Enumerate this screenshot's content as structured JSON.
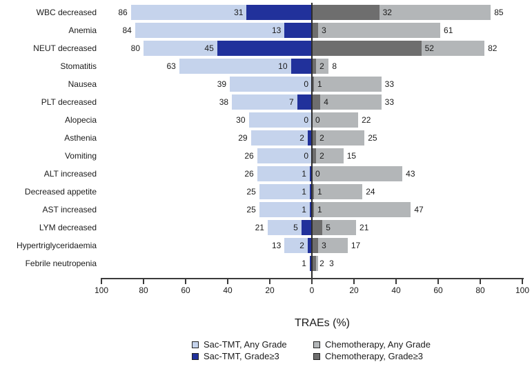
{
  "chart_data": {
    "type": "bar",
    "variant": "horizontal-diverging-tornado",
    "title": "",
    "xlabel": "TRAEs (%)",
    "axis": {
      "tick_labels": [
        "100",
        "80",
        "60",
        "40",
        "20",
        "0",
        "20",
        "40",
        "60",
        "80",
        "100"
      ],
      "tick_step_percent": 20,
      "left_max": 100,
      "right_max": 100,
      "grid": false
    },
    "categories": [
      "WBC decreased",
      "Anemia",
      "NEUT decreased",
      "Stomatitis",
      "Nausea",
      "PLT decreased",
      "Alopecia",
      "Asthenia",
      "Vomiting",
      "ALT increased",
      "Decreased appetite",
      "AST increased",
      "LYM decreased",
      "Hypertriglyceridaemia",
      "Febrile neutropenia"
    ],
    "series": [
      {
        "name": "Sac-TMT, Any Grade",
        "side": "left",
        "grade": "any",
        "color": "#c5d3ec",
        "values": [
          86,
          84,
          80,
          63,
          39,
          38,
          30,
          29,
          26,
          26,
          25,
          25,
          21,
          13,
          1
        ]
      },
      {
        "name": "Sac-TMT, Grade≥3",
        "side": "left",
        "grade": "ge3",
        "color": "#21319b",
        "values": [
          31,
          13,
          45,
          10,
          0,
          7,
          0,
          2,
          0,
          1,
          1,
          1,
          5,
          2,
          1
        ]
      },
      {
        "name": "Chemotherapy, Any Grade",
        "side": "right",
        "grade": "any",
        "color": "#b3b6b8",
        "values": [
          85,
          61,
          82,
          8,
          33,
          33,
          22,
          25,
          15,
          43,
          24,
          47,
          21,
          17,
          3
        ]
      },
      {
        "name": "Chemotherapy, Grade≥3",
        "side": "right",
        "grade": "ge3",
        "color": "#6e6e6e",
        "values": [
          32,
          3,
          52,
          2,
          1,
          4,
          0,
          2,
          2,
          0,
          1,
          1,
          5,
          3,
          2
        ]
      }
    ],
    "legend": {
      "position": "bottom",
      "display_order": [
        "Sac-TMT, Any Grade",
        "Chemotherapy, Any Grade",
        "Sac-TMT, Grade≥3",
        "Chemotherapy, Grade≥3"
      ]
    },
    "colors": {
      "zero_line": "#2b2b2b",
      "axis": "#3a3a3a",
      "text": "#1a1a1a",
      "background": "#ffffff"
    }
  }
}
